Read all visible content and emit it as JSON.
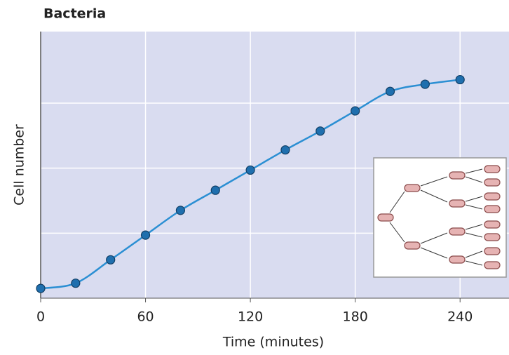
{
  "chart_data": {
    "type": "line",
    "title": "Bacteria",
    "x_label": "Time (minutes)",
    "y_label": "Cell number",
    "x": [
      0,
      20,
      40,
      60,
      80,
      100,
      120,
      140,
      160,
      180,
      200,
      220,
      240
    ],
    "series": [
      {
        "name": "Bacteria",
        "color": "#2b8fd3",
        "values": [
          0.15,
          0.23,
          0.59,
          0.97,
          1.35,
          1.66,
          1.97,
          2.28,
          2.57,
          2.88,
          3.18,
          3.29,
          3.36
        ]
      }
    ],
    "xlim": [
      0,
      268
    ],
    "xticks": [
      0,
      60,
      120,
      180,
      240
    ],
    "ylim": [
      0,
      4.1
    ],
    "yticks": [
      1,
      2,
      3
    ],
    "grid": true
  }
}
